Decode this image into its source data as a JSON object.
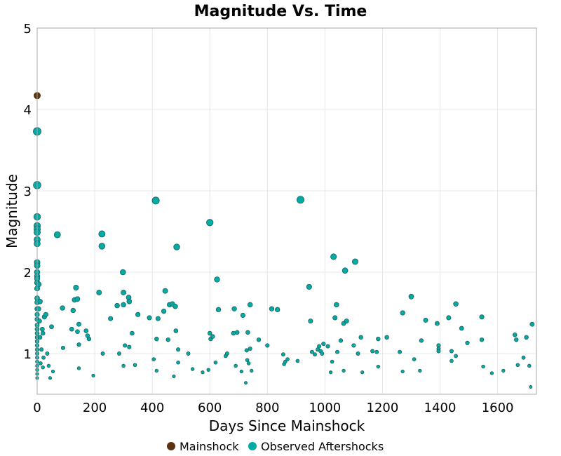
{
  "chart_data": {
    "type": "scatter",
    "title": "Magnitude Vs. Time",
    "xlabel": "Days Since Mainshock",
    "ylabel": "Magnitude",
    "xlim": [
      0,
      1735
    ],
    "ylim": [
      0.5,
      5
    ],
    "xticks": [
      0,
      200,
      400,
      600,
      800,
      1000,
      1200,
      1400,
      1600
    ],
    "yticks": [
      1,
      2,
      3,
      4,
      5
    ],
    "grid": true,
    "legend_position": "bottom",
    "marker_size_encodes": "magnitude",
    "colors": {
      "mainshock": "#5c3310",
      "aftershock": "#00aba6",
      "aftershock_edge": "#1f5f5a",
      "grid": "#e8e8e8",
      "axis": "#999999"
    },
    "series": [
      {
        "name": "Mainshock",
        "points": [
          [
            0,
            4.17
          ]
        ]
      },
      {
        "name": "Observed Aftershocks",
        "points": [
          [
            0,
            3.73
          ],
          [
            0,
            3.07
          ],
          [
            0,
            2.68
          ],
          [
            0,
            2.57
          ],
          [
            0,
            2.53
          ],
          [
            0,
            2.49
          ],
          [
            0,
            2.4
          ],
          [
            0,
            2.35
          ],
          [
            0,
            2.12
          ],
          [
            0,
            2.08
          ],
          [
            0,
            2.0
          ],
          [
            0,
            1.95
          ],
          [
            0,
            1.92
          ],
          [
            0,
            1.87
          ],
          [
            0,
            1.8
          ],
          [
            0,
            1.68
          ],
          [
            0,
            1.63
          ],
          [
            0,
            1.55
          ],
          [
            0,
            1.48
          ],
          [
            0,
            1.42
          ],
          [
            0,
            1.35
          ],
          [
            0,
            1.3
          ],
          [
            0,
            1.25
          ],
          [
            0,
            1.2
          ],
          [
            0,
            1.15
          ],
          [
            0,
            1.1
          ],
          [
            0,
            1.05
          ],
          [
            0,
            1.0
          ],
          [
            0,
            0.95
          ],
          [
            0,
            0.9
          ],
          [
            0,
            0.85
          ],
          [
            0,
            0.8
          ],
          [
            0,
            0.75
          ],
          [
            0,
            0.7
          ],
          [
            5,
            1.85
          ],
          [
            10,
            1.64
          ],
          [
            25,
            1.45
          ],
          [
            30,
            1.48
          ],
          [
            18,
            1.3
          ],
          [
            20,
            1.25
          ],
          [
            10,
            1.2
          ],
          [
            15,
            1.05
          ],
          [
            22,
            0.95
          ],
          [
            12,
            0.88
          ],
          [
            20,
            0.83
          ],
          [
            5,
            1.55
          ],
          [
            8,
            1.4
          ],
          [
            50,
            1.33
          ],
          [
            35,
            1.0
          ],
          [
            40,
            0.85
          ],
          [
            55,
            0.78
          ],
          [
            45,
            0.7
          ],
          [
            70,
            2.46
          ],
          [
            88,
            1.56
          ],
          [
            90,
            1.07
          ],
          [
            120,
            1.3
          ],
          [
            125,
            1.53
          ],
          [
            130,
            1.66
          ],
          [
            135,
            1.81
          ],
          [
            140,
            1.67
          ],
          [
            145,
            1.36
          ],
          [
            140,
            1.27
          ],
          [
            145,
            1.11
          ],
          [
            145,
            0.82
          ],
          [
            170,
            1.28
          ],
          [
            175,
            1.22
          ],
          [
            180,
            1.18
          ],
          [
            195,
            0.73
          ],
          [
            215,
            1.75
          ],
          [
            225,
            2.47
          ],
          [
            225,
            2.32
          ],
          [
            228,
            1.0
          ],
          [
            255,
            1.43
          ],
          [
            278,
            1.59
          ],
          [
            285,
            1.0
          ],
          [
            298,
            2.0
          ],
          [
            300,
            1.75
          ],
          [
            300,
            1.6
          ],
          [
            300,
            0.85
          ],
          [
            305,
            1.1
          ],
          [
            318,
            1.69
          ],
          [
            320,
            1.64
          ],
          [
            320,
            1.08
          ],
          [
            330,
            1.25
          ],
          [
            340,
            0.86
          ],
          [
            350,
            1.48
          ],
          [
            390,
            1.44
          ],
          [
            405,
            0.93
          ],
          [
            412,
            2.88
          ],
          [
            415,
            1.18
          ],
          [
            415,
            0.79
          ],
          [
            420,
            1.43
          ],
          [
            440,
            1.52
          ],
          [
            445,
            1.77
          ],
          [
            455,
            1.17
          ],
          [
            460,
            1.6
          ],
          [
            470,
            1.61
          ],
          [
            475,
            0.72
          ],
          [
            480,
            1.58
          ],
          [
            482,
            1.28
          ],
          [
            485,
            2.31
          ],
          [
            490,
            1.05
          ],
          [
            490,
            0.89
          ],
          [
            525,
            1.0
          ],
          [
            540,
            0.81
          ],
          [
            575,
            0.77
          ],
          [
            595,
            0.8
          ],
          [
            600,
            2.61
          ],
          [
            600,
            1.25
          ],
          [
            603,
            1.18
          ],
          [
            610,
            1.21
          ],
          [
            620,
            0.89
          ],
          [
            625,
            1.91
          ],
          [
            630,
            1.54
          ],
          [
            655,
            0.97
          ],
          [
            660,
            1.0
          ],
          [
            682,
            1.25
          ],
          [
            685,
            1.55
          ],
          [
            690,
            0.85
          ],
          [
            695,
            1.26
          ],
          [
            710,
            0.78
          ],
          [
            715,
            1.47
          ],
          [
            725,
            0.64
          ],
          [
            728,
            1.04
          ],
          [
            730,
            0.92
          ],
          [
            732,
            1.26
          ],
          [
            735,
            0.88
          ],
          [
            740,
            1.6
          ],
          [
            740,
            1.06
          ],
          [
            745,
            0.79
          ],
          [
            770,
            1.17
          ],
          [
            800,
            1.1
          ],
          [
            815,
            1.55
          ],
          [
            835,
            1.54
          ],
          [
            855,
            0.99
          ],
          [
            858,
            0.87
          ],
          [
            862,
            0.9
          ],
          [
            870,
            0.93
          ],
          [
            905,
            0.91
          ],
          [
            915,
            2.89
          ],
          [
            945,
            1.82
          ],
          [
            950,
            1.4
          ],
          [
            955,
            1.02
          ],
          [
            965,
            0.99
          ],
          [
            975,
            1.05
          ],
          [
            980,
            1.09
          ],
          [
            985,
            1.03
          ],
          [
            990,
            1.0
          ],
          [
            995,
            1.12
          ],
          [
            1010,
            1.09
          ],
          [
            1020,
            0.77
          ],
          [
            1025,
            0.9
          ],
          [
            1030,
            2.19
          ],
          [
            1035,
            1.44
          ],
          [
            1040,
            1.6
          ],
          [
            1043,
            1.02
          ],
          [
            1055,
            1.16
          ],
          [
            1065,
            1.37
          ],
          [
            1070,
            2.02
          ],
          [
            1075,
            1.4
          ],
          [
            1065,
            0.79
          ],
          [
            1100,
            1.1
          ],
          [
            1105,
            2.13
          ],
          [
            1115,
            1.0
          ],
          [
            1125,
            1.2
          ],
          [
            1130,
            0.77
          ],
          [
            1165,
            1.03
          ],
          [
            1180,
            1.02
          ],
          [
            1185,
            1.18
          ],
          [
            1185,
            0.84
          ],
          [
            1215,
            1.2
          ],
          [
            1260,
            1.02
          ],
          [
            1270,
            1.5
          ],
          [
            1270,
            0.78
          ],
          [
            1300,
            1.7
          ],
          [
            1310,
            0.93
          ],
          [
            1330,
            0.79
          ],
          [
            1335,
            1.16
          ],
          [
            1350,
            1.41
          ],
          [
            1390,
            1.37
          ],
          [
            1395,
            1.1
          ],
          [
            1395,
            1.06
          ],
          [
            1395,
            1.03
          ],
          [
            1430,
            1.44
          ],
          [
            1440,
            1.03
          ],
          [
            1440,
            0.91
          ],
          [
            1455,
            1.61
          ],
          [
            1455,
            0.97
          ],
          [
            1475,
            1.31
          ],
          [
            1495,
            1.13
          ],
          [
            1545,
            1.45
          ],
          [
            1545,
            1.17
          ],
          [
            1550,
            0.84
          ],
          [
            1580,
            0.76
          ],
          [
            1620,
            0.79
          ],
          [
            1660,
            1.23
          ],
          [
            1665,
            1.17
          ],
          [
            1670,
            0.86
          ],
          [
            1690,
            0.95
          ],
          [
            1700,
            1.2
          ],
          [
            1710,
            0.85
          ],
          [
            1720,
            1.36
          ],
          [
            1715,
            0.59
          ]
        ]
      }
    ]
  }
}
